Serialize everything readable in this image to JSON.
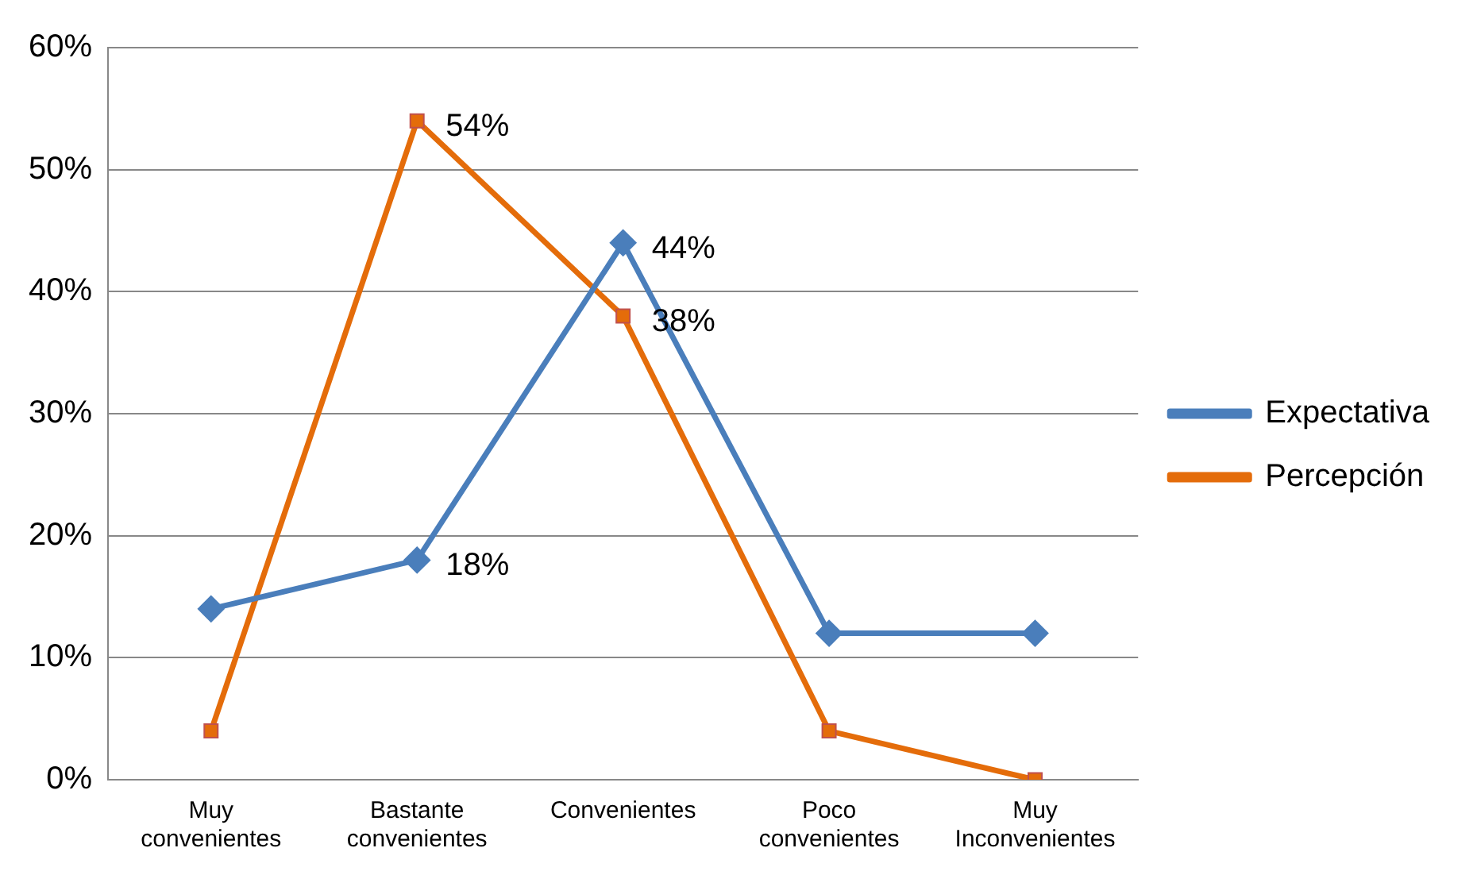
{
  "chart_data": {
    "type": "line",
    "categories": [
      "Muy convenientes",
      "Bastante convenientes",
      "Convenientes",
      "Poco convenientes",
      "Muy Inconvenientes"
    ],
    "series": [
      {
        "name": "Expectativa",
        "color": "#4a7ebb",
        "marker": "diamond",
        "values": [
          14,
          18,
          44,
          12,
          12
        ],
        "value_labels": [
          null,
          "18%",
          "44%",
          null,
          null
        ]
      },
      {
        "name": "Percepción",
        "color": "#e46c0a",
        "marker": "square",
        "values": [
          4,
          54,
          38,
          4,
          0
        ],
        "value_labels": [
          null,
          "54%",
          "38%",
          null,
          null
        ]
      }
    ],
    "ylim": [
      0,
      60
    ],
    "yticks": [
      {
        "value": 0,
        "label": "0%"
      },
      {
        "value": 10,
        "label": "10%"
      },
      {
        "value": 20,
        "label": "20%"
      },
      {
        "value": 30,
        "label": "30%"
      },
      {
        "value": 40,
        "label": "40%"
      },
      {
        "value": 50,
        "label": "50%"
      },
      {
        "value": 60,
        "label": "60%"
      }
    ],
    "grid": "y",
    "legend": "right",
    "line_style": "solid"
  }
}
